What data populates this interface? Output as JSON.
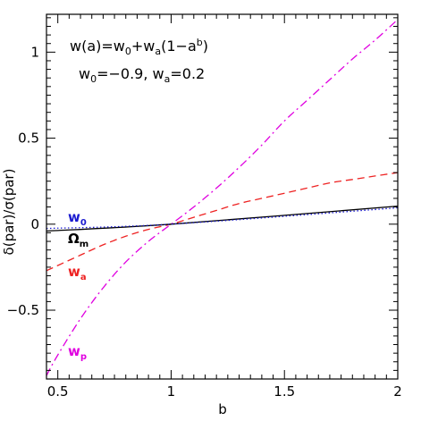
{
  "chart_data": {
    "type": "line",
    "xlabel": "b",
    "ylabel": "δ(par)/σ(par)",
    "xlim": [
      0.45,
      2.0
    ],
    "ylim": [
      -0.9,
      1.22
    ],
    "xticks_major": [
      0.5,
      1,
      1.5,
      2
    ],
    "xtick_labels": [
      "0.5",
      "1",
      "1.5",
      "2"
    ],
    "yticks_major": [
      -0.5,
      0,
      0.5,
      1
    ],
    "ytick_labels": [
      "−0.5",
      "0",
      "0.5",
      "1"
    ],
    "annotations": {
      "line1": "w(a)=w₀+wₐ(1−aᵇ)",
      "line2": "w₀=−0.9,  wₐ=0.2"
    },
    "series": [
      {
        "name": "wp",
        "label_main": "w",
        "label_sub": "p",
        "color": "#e000e0",
        "style": "dashdot",
        "x": [
          0.45,
          0.5,
          0.6,
          0.7,
          0.8,
          0.9,
          1.0,
          1.1,
          1.2,
          1.3,
          1.4,
          1.5,
          1.6,
          1.7,
          1.8,
          1.9,
          2.0
        ],
        "y": [
          -0.88,
          -0.76,
          -0.55,
          -0.37,
          -0.22,
          -0.1,
          0.0,
          0.1,
          0.21,
          0.33,
          0.46,
          0.6,
          0.72,
          0.84,
          0.96,
          1.07,
          1.19
        ]
      },
      {
        "name": "wa",
        "label_main": "w",
        "label_sub": "a",
        "color": "#ee2222",
        "style": "dashed",
        "x": [
          0.45,
          0.5,
          0.6,
          0.7,
          0.8,
          0.9,
          1.0,
          1.1,
          1.2,
          1.3,
          1.4,
          1.5,
          1.6,
          1.7,
          1.8,
          1.9,
          2.0
        ],
        "y": [
          -0.27,
          -0.24,
          -0.18,
          -0.12,
          -0.07,
          -0.03,
          0.0,
          0.04,
          0.08,
          0.12,
          0.15,
          0.18,
          0.21,
          0.24,
          0.26,
          0.28,
          0.3
        ]
      },
      {
        "name": "Om",
        "label_main": "Ω",
        "label_sub": "m",
        "color": "#000000",
        "style": "solid",
        "x": [
          0.45,
          1.0,
          2.0
        ],
        "y": [
          -0.04,
          0.0,
          0.105
        ]
      },
      {
        "name": "w0",
        "label_main": "w",
        "label_sub": "0",
        "color": "#1a1ad0",
        "style": "dotted",
        "x": [
          0.45,
          1.0,
          2.0
        ],
        "y": [
          -0.025,
          0.0,
          0.095
        ]
      }
    ]
  }
}
